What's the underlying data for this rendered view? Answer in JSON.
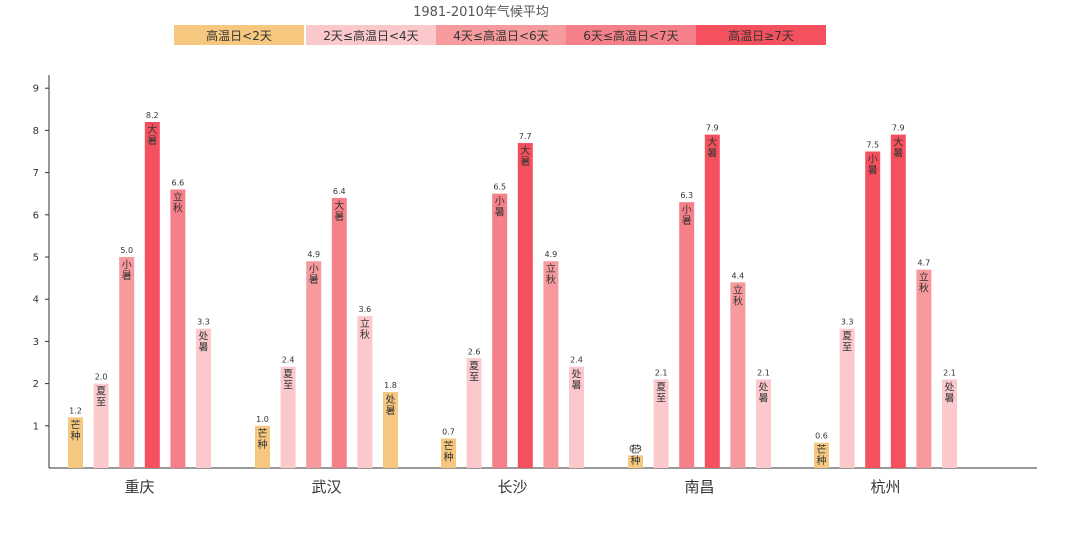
{
  "chart_data": {
    "type": "bar",
    "title": "1981-2010年气候平均",
    "legend": [
      {
        "label": "高温日<2天",
        "color": "#f6c77e"
      },
      {
        "label": "2天≤高温日<4天",
        "color": "#fbc9cc"
      },
      {
        "label": "4天≤高温日<6天",
        "color": "#f79a9d"
      },
      {
        "label": "6天≤高温日<7天",
        "color": "#f6808a"
      },
      {
        "label": "高温日≥7天",
        "color": "#f5505d"
      }
    ],
    "ylim": [
      0,
      9
    ],
    "yticks": [
      "1",
      "2",
      "3",
      "4",
      "5",
      "6",
      "7",
      "8",
      "9"
    ],
    "categories": [
      "重庆",
      "武汉",
      "长沙",
      "南昌",
      "杭州"
    ],
    "groups": [
      {
        "city": "重庆",
        "bars": [
          {
            "term": "芒种",
            "value": 1.2,
            "label": "1.2",
            "color": "#f6c77e"
          },
          {
            "term": "夏至",
            "value": 2.0,
            "label": "2.0",
            "color": "#fbc9cc"
          },
          {
            "term": "小暑",
            "value": 5.0,
            "label": "5.0",
            "color": "#f79a9d"
          },
          {
            "term": "大暑",
            "value": 8.2,
            "label": "8.2",
            "color": "#f5505d"
          },
          {
            "term": "立秋",
            "value": 6.6,
            "label": "6.6",
            "color": "#f6808a"
          },
          {
            "term": "处暑",
            "value": 3.3,
            "label": "3.3",
            "color": "#fbc9cc"
          }
        ]
      },
      {
        "city": "武汉",
        "bars": [
          {
            "term": "芒种",
            "value": 1.0,
            "label": "1.0",
            "color": "#f6c77e"
          },
          {
            "term": "夏至",
            "value": 2.4,
            "label": "2.4",
            "color": "#fbc9cc"
          },
          {
            "term": "小暑",
            "value": 4.9,
            "label": "4.9",
            "color": "#f79a9d"
          },
          {
            "term": "大暑",
            "value": 6.4,
            "label": "6.4",
            "color": "#f6808a"
          },
          {
            "term": "立秋",
            "value": 3.6,
            "label": "3.6",
            "color": "#fbc9cc"
          },
          {
            "term": "处暑",
            "value": 1.8,
            "label": "1.8",
            "color": "#f6c77e"
          }
        ]
      },
      {
        "city": "长沙",
        "bars": [
          {
            "term": "芒种",
            "value": 0.7,
            "label": "0.7",
            "color": "#f6c77e"
          },
          {
            "term": "夏至",
            "value": 2.6,
            "label": "2.6",
            "color": "#fbc9cc"
          },
          {
            "term": "小暑",
            "value": 6.5,
            "label": "6.5",
            "color": "#f6808a"
          },
          {
            "term": "大暑",
            "value": 7.7,
            "label": "7.7",
            "color": "#f5505d"
          },
          {
            "term": "立秋",
            "value": 4.9,
            "label": "4.9",
            "color": "#f79a9d"
          },
          {
            "term": "处暑",
            "value": 2.4,
            "label": "2.4",
            "color": "#fbc9cc"
          }
        ]
      },
      {
        "city": "南昌",
        "bars": [
          {
            "term": "芒种",
            "value": 0.3,
            "label": "0.3",
            "color": "#f6c77e"
          },
          {
            "term": "夏至",
            "value": 2.1,
            "label": "2.1",
            "color": "#fbc9cc"
          },
          {
            "term": "小暑",
            "value": 6.3,
            "label": "6.3",
            "color": "#f6808a"
          },
          {
            "term": "大暑",
            "value": 7.9,
            "label": "7.9",
            "color": "#f5505d"
          },
          {
            "term": "立秋",
            "value": 4.4,
            "label": "4.4",
            "color": "#f79a9d"
          },
          {
            "term": "处暑",
            "value": 2.1,
            "label": "2.1",
            "color": "#fbc9cc"
          }
        ]
      },
      {
        "city": "杭州",
        "bars": [
          {
            "term": "芒种",
            "value": 0.6,
            "label": "0.6",
            "color": "#f6c77e"
          },
          {
            "term": "夏至",
            "value": 3.3,
            "label": "3.3",
            "color": "#fbc9cc"
          },
          {
            "term": "小暑",
            "value": 7.5,
            "label": "7.5",
            "color": "#f5505d"
          },
          {
            "term": "大暑",
            "value": 7.9,
            "label": "7.9",
            "color": "#f5505d"
          },
          {
            "term": "立秋",
            "value": 4.7,
            "label": "4.7",
            "color": "#f79a9d"
          },
          {
            "term": "处暑",
            "value": 2.1,
            "label": "2.1",
            "color": "#fbc9cc"
          }
        ]
      }
    ],
    "grid": false,
    "legend_position": "top"
  }
}
